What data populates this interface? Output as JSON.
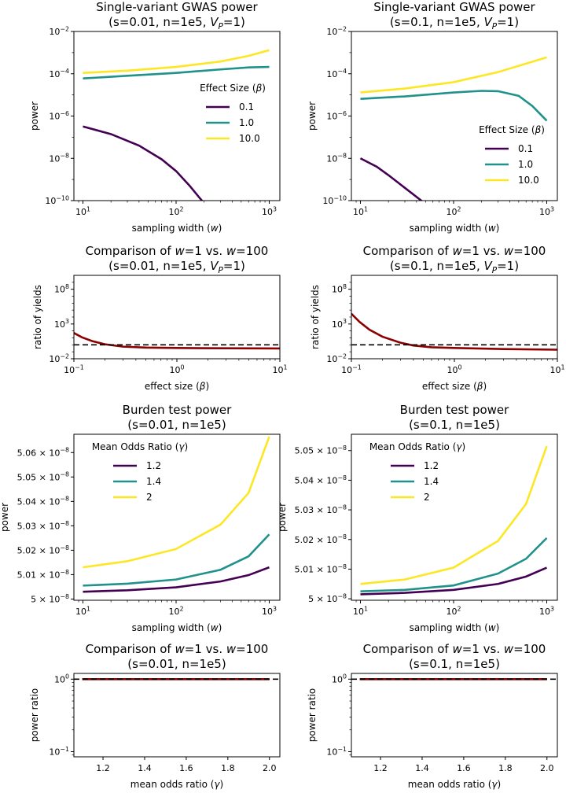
{
  "chart_data": [
    {
      "id": "p1",
      "type": "line",
      "title": "Single-variant GWAS power\n(s=0.01, n=1e5, $V_P$=1)",
      "xlabel": "sampling width ($w$)",
      "ylabel": "power",
      "xscale": "log",
      "yscale": "log",
      "xlim": [
        8,
        1300
      ],
      "ylim": [
        1e-10,
        0.01
      ],
      "xticks": [
        10,
        100,
        1000
      ],
      "xticklabels": [
        "10^1",
        "10^2",
        "10^3"
      ],
      "yticks": [
        1e-10,
        1e-08,
        1e-06,
        0.0001,
        0.01
      ],
      "yticklabels": [
        "10^-10",
        "10^-8",
        "10^-6",
        "10^-4",
        "10^-2"
      ],
      "legend": {
        "title": "Effect Size ($\\beta$)",
        "placement": "center-right"
      },
      "series": [
        {
          "name": "0.1",
          "color": "#440154",
          "x": [
            10,
            20,
            40,
            70,
            100,
            140,
            180,
            210
          ],
          "y": [
            3.2e-07,
            1.4e-07,
            4e-08,
            9e-09,
            2.5e-09,
            5e-10,
            1.3e-10,
            6e-11
          ]
        },
        {
          "name": "1.0",
          "color": "#21918c",
          "x": [
            10,
            30,
            100,
            300,
            600,
            1000
          ],
          "y": [
            6e-05,
            8e-05,
            0.00011,
            0.00016,
            0.0002,
            0.00021
          ]
        },
        {
          "name": "10.0",
          "color": "#fde725",
          "x": [
            10,
            30,
            100,
            300,
            600,
            1000
          ],
          "y": [
            0.00011,
            0.00014,
            0.00021,
            0.00038,
            0.0007,
            0.0013
          ]
        }
      ]
    },
    {
      "id": "p2",
      "type": "line",
      "title": "Single-variant GWAS power\n(s=0.1, n=1e5, $V_P$=1)",
      "xlabel": "sampling width ($w$)",
      "ylabel": "power",
      "xscale": "log",
      "yscale": "log",
      "xlim": [
        8,
        1300
      ],
      "ylim": [
        1e-10,
        0.01
      ],
      "xticks": [
        10,
        100,
        1000
      ],
      "xticklabels": [
        "10^1",
        "10^2",
        "10^3"
      ],
      "yticks": [
        1e-10,
        1e-08,
        1e-06,
        0.0001,
        0.01
      ],
      "yticklabels": [
        "10^-10",
        "10^-8",
        "10^-6",
        "10^-4",
        "10^-2"
      ],
      "legend": {
        "title": "Effect Size ($\\beta$)",
        "placement": "lower-right"
      },
      "series": [
        {
          "name": "0.1",
          "color": "#440154",
          "x": [
            10,
            15,
            20,
            30,
            40,
            50
          ],
          "y": [
            1e-08,
            4e-09,
            1.6e-09,
            4e-10,
            1.5e-10,
            7e-11
          ]
        },
        {
          "name": "1.0",
          "color": "#21918c",
          "x": [
            10,
            30,
            100,
            200,
            300,
            500,
            700,
            1000
          ],
          "y": [
            6.5e-06,
            8.5e-06,
            1.3e-05,
            1.55e-05,
            1.5e-05,
            9e-06,
            3e-06,
            6e-07
          ]
        },
        {
          "name": "10.0",
          "color": "#fde725",
          "x": [
            10,
            30,
            100,
            300,
            600,
            1000
          ],
          "y": [
            1.3e-05,
            2e-05,
            4e-05,
            0.00012,
            0.0003,
            0.0006
          ]
        }
      ]
    },
    {
      "id": "p3",
      "type": "line",
      "title": "Comparison of $w$=1 vs. $w$=100\n(s=0.01, n=1e5, $V_P$=1)",
      "xlabel": "effect size ($\\beta$)",
      "ylabel": "ratio of yields",
      "xscale": "log",
      "yscale": "log",
      "xlim": [
        0.1,
        10
      ],
      "ylim": [
        0.01,
        10000000000.0
      ],
      "xticks": [
        0.1,
        1,
        10
      ],
      "xticklabels": [
        "10^-1",
        "10^0",
        "10^1"
      ],
      "yticks": [
        0.01,
        1000,
        100000000.0
      ],
      "yticklabels": [
        "10^-2",
        "10^3",
        "10^8"
      ],
      "reference_line": {
        "y": 1,
        "style": "dashed"
      },
      "series": [
        {
          "color": "#8b0000",
          "x": [
            0.1,
            0.12,
            0.15,
            0.2,
            0.3,
            0.5,
            1,
            3,
            10
          ],
          "y": [
            50,
            12,
            3.5,
            1.2,
            0.55,
            0.4,
            0.35,
            0.32,
            0.3
          ]
        }
      ]
    },
    {
      "id": "p4",
      "type": "line",
      "title": "Comparison of $w$=1 vs. $w$=100\n(s=0.1, n=1e5, $V_P$=1)",
      "xlabel": "effect size ($\\beta$)",
      "ylabel": "ratio of yields",
      "xscale": "log",
      "yscale": "log",
      "xlim": [
        0.1,
        10
      ],
      "ylim": [
        0.01,
        10000000000.0
      ],
      "xticks": [
        0.1,
        1,
        10
      ],
      "xticklabels": [
        "10^-1",
        "10^0",
        "10^1"
      ],
      "yticks": [
        0.01,
        1000,
        100000000.0
      ],
      "yticklabels": [
        "10^-2",
        "10^3",
        "10^8"
      ],
      "reference_line": {
        "y": 1,
        "style": "dashed"
      },
      "series": [
        {
          "color": "#8b0000",
          "x": [
            0.1,
            0.12,
            0.15,
            0.2,
            0.3,
            0.4,
            0.6,
            1,
            3,
            10
          ],
          "y": [
            30000,
            2000,
            150,
            15,
            2,
            0.8,
            0.45,
            0.35,
            0.25,
            0.2
          ]
        }
      ]
    },
    {
      "id": "p5",
      "type": "line",
      "title": "Burden test power\n(s=0.01, n=1e5)",
      "xlabel": "sampling width ($w$)",
      "ylabel": "power",
      "xscale": "log",
      "yscale": "linear",
      "xlim": [
        8,
        1300
      ],
      "ylim": [
        4.9995e-08,
        5.0675e-08
      ],
      "xticks": [
        10,
        100,
        1000
      ],
      "xticklabels": [
        "10^1",
        "10^2",
        "10^3"
      ],
      "yticks": [
        5e-08,
        5.01e-08,
        5.02e-08,
        5.03e-08,
        5.04e-08,
        5.05e-08,
        5.06e-08
      ],
      "yticklabels": [
        "5 × 10^-8",
        "5.01 × 10^-8",
        "5.02 × 10^-8",
        "5.03 × 10^-8",
        "5.04 × 10^-8",
        "5.05 × 10^-8",
        "5.06 × 10^-8"
      ],
      "legend": {
        "title": "Mean Odds Ratio ($\\gamma$)",
        "placement": "top-left"
      },
      "series": [
        {
          "name": "1.2",
          "color": "#440154",
          "x": [
            10,
            30,
            100,
            300,
            600,
            1000
          ],
          "y": [
            5.003e-08,
            5.0036e-08,
            5.0048e-08,
            5.0072e-08,
            5.0098e-08,
            5.013e-08
          ]
        },
        {
          "name": "1.4",
          "color": "#21918c",
          "x": [
            10,
            30,
            100,
            300,
            600,
            1000
          ],
          "y": [
            5.0055e-08,
            5.0063e-08,
            5.008e-08,
            5.012e-08,
            5.0175e-08,
            5.0265e-08
          ]
        },
        {
          "name": "2",
          "color": "#fde725",
          "x": [
            10,
            30,
            100,
            300,
            600,
            1000
          ],
          "y": [
            5.013e-08,
            5.0155e-08,
            5.0205e-08,
            5.0305e-08,
            5.0435e-08,
            5.0665e-08
          ]
        }
      ]
    },
    {
      "id": "p6",
      "type": "line",
      "title": "Burden test power\n(s=0.1, n=1e5)",
      "xlabel": "sampling width ($w$)",
      "ylabel": "power",
      "xscale": "log",
      "yscale": "linear",
      "xlim": [
        8,
        1300
      ],
      "ylim": [
        4.9995e-08,
        5.0555e-08
      ],
      "xticks": [
        10,
        100,
        1000
      ],
      "xticklabels": [
        "10^1",
        "10^2",
        "10^3"
      ],
      "yticks": [
        5e-08,
        5.01e-08,
        5.02e-08,
        5.03e-08,
        5.04e-08,
        5.05e-08
      ],
      "yticklabels": [
        "5 × 10^-8",
        "5.01 × 10^-8",
        "5.02 × 10^-8",
        "5.03 × 10^-8",
        "5.04 × 10^-8",
        "5.05 × 10^-8"
      ],
      "legend": {
        "title": "Mean Odds Ratio ($\\gamma$)",
        "placement": "top-left"
      },
      "series": [
        {
          "name": "1.2",
          "color": "#440154",
          "x": [
            10,
            30,
            100,
            300,
            600,
            1000
          ],
          "y": [
            5.0015e-08,
            5.002e-08,
            5.003e-08,
            5.005e-08,
            5.0075e-08,
            5.0105e-08
          ]
        },
        {
          "name": "1.4",
          "color": "#21918c",
          "x": [
            10,
            30,
            100,
            300,
            600,
            1000
          ],
          "y": [
            5.0025e-08,
            5.003e-08,
            5.0045e-08,
            5.0085e-08,
            5.0135e-08,
            5.0205e-08
          ]
        },
        {
          "name": "2",
          "color": "#fde725",
          "x": [
            10,
            30,
            100,
            300,
            600,
            1000
          ],
          "y": [
            5.005e-08,
            5.0065e-08,
            5.0105e-08,
            5.0195e-08,
            5.032e-08,
            5.0515e-08
          ]
        }
      ]
    },
    {
      "id": "p7",
      "type": "line",
      "title": "Comparison of $w$=1 vs. $w$=100\n(s=0.01, n=1e5)",
      "xlabel": "mean odds ratio ($\\gamma$)",
      "ylabel": "power ratio",
      "xscale": "linear",
      "yscale": "log",
      "xlim": [
        1.06,
        2.05
      ],
      "ylim": [
        0.085,
        1.2
      ],
      "xticks": [
        1.2,
        1.4,
        1.6,
        1.8,
        2.0
      ],
      "xticklabels": [
        "1.2",
        "1.4",
        "1.6",
        "1.8",
        "2.0"
      ],
      "yticks": [
        0.1,
        1
      ],
      "yticklabels": [
        "10^-1",
        "10^0"
      ],
      "reference_line": {
        "y": 1,
        "style": "dashed"
      },
      "series": [
        {
          "color": "#8b0000",
          "x": [
            1.1,
            1.5,
            2.0
          ],
          "y": [
            0.9999,
            0.9998,
            0.9996
          ]
        }
      ]
    },
    {
      "id": "p8",
      "type": "line",
      "title": "Comparison of $w$=1 vs. $w$=100\n(s=0.1, n=1e5)",
      "xlabel": "mean odds ratio ($\\gamma$)",
      "ylabel": "power ratio",
      "xscale": "linear",
      "yscale": "log",
      "xlim": [
        1.06,
        2.05
      ],
      "ylim": [
        0.085,
        1.2
      ],
      "xticks": [
        1.2,
        1.4,
        1.6,
        1.8,
        2.0
      ],
      "xticklabels": [
        "1.2",
        "1.4",
        "1.6",
        "1.8",
        "2.0"
      ],
      "yticks": [
        0.1,
        1
      ],
      "yticklabels": [
        "10^-1",
        "10^0"
      ],
      "reference_line": {
        "y": 1,
        "style": "dashed"
      },
      "series": [
        {
          "color": "#8b0000",
          "x": [
            1.1,
            1.5,
            2.0
          ],
          "y": [
            0.9999,
            0.9998,
            0.9996
          ]
        }
      ]
    }
  ]
}
